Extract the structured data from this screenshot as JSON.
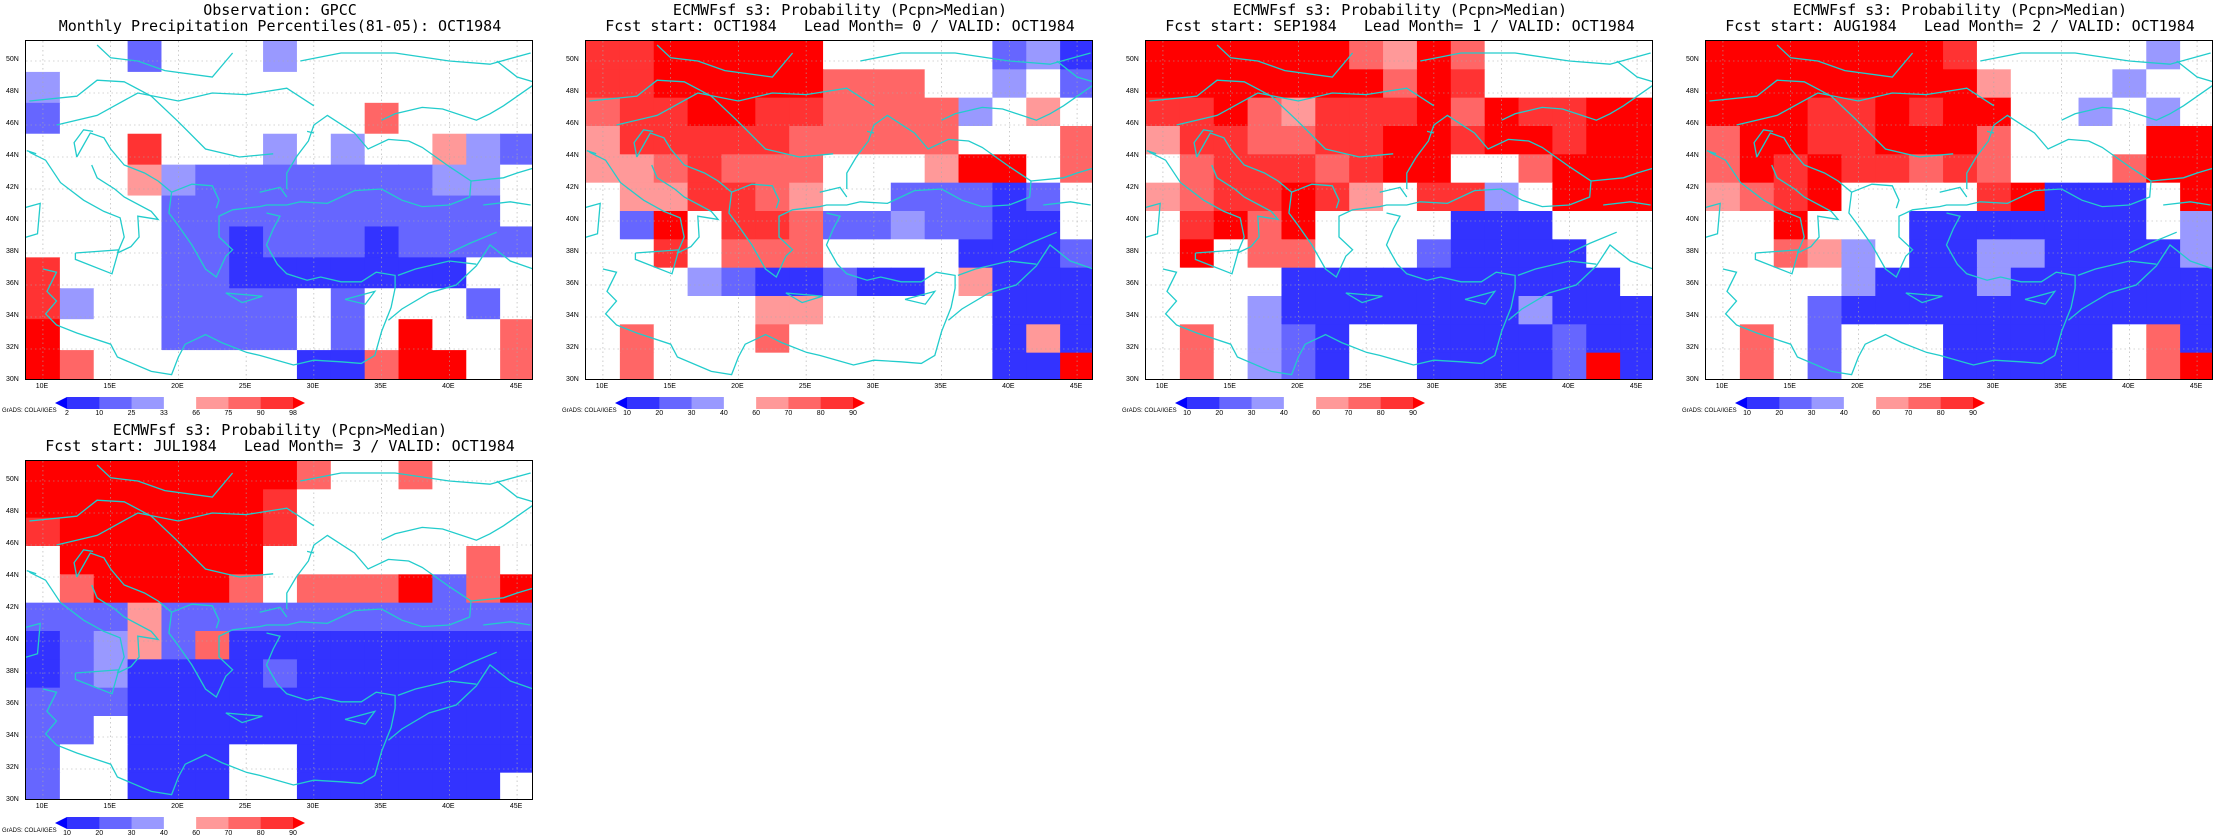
{
  "grads_label": "GrADS: COLA/IGES",
  "lat_labels": [
    "50N",
    "48N",
    "46N",
    "44N",
    "42N",
    "40N",
    "38N",
    "36N",
    "34N",
    "32N",
    "30N"
  ],
  "lon_labels": [
    "10E",
    "15E",
    "20E",
    "25E",
    "30E",
    "35E",
    "40E",
    "45E"
  ],
  "palettes": {
    "obs": [
      "#0000ff",
      "#3333ff",
      "#6666ff",
      "#9999ff",
      "#ffffff",
      "#ff9999",
      "#ff6666",
      "#ff3333",
      "#ff0000"
    ],
    "prob": [
      "#0000ff",
      "#3333ff",
      "#6666ff",
      "#9999ff",
      "#ffffff",
      "#ff9999",
      "#ff6666",
      "#ff3333",
      "#ff0000"
    ]
  },
  "colorbars": {
    "obs": [
      "2",
      "10",
      "25",
      "33",
      "66",
      "75",
      "90",
      "98"
    ],
    "prob": [
      "10",
      "20",
      "30",
      "40",
      "60",
      "70",
      "80",
      "90"
    ]
  },
  "coast_color": "#22cccc",
  "chart_data": [
    {
      "type": "heatmap",
      "title": "Observation: GPCC",
      "subtitle": "Monthly Precipitation Percentiles(81-05): OCT1984",
      "palette": "obs",
      "x": [
        "10E",
        "15E",
        "20E",
        "25E",
        "30E",
        "35E",
        "40E",
        "45E"
      ],
      "xlim": [
        8.75,
        46.25
      ],
      "ylim": [
        30,
        51.25
      ],
      "grid": "2.5 degree",
      "values": [
        [
          4,
          4,
          4,
          2,
          4,
          4,
          4,
          3,
          4,
          4,
          4,
          4,
          4,
          4,
          4
        ],
        [
          3,
          4,
          4,
          4,
          4,
          4,
          4,
          4,
          4,
          4,
          4,
          4,
          4,
          4,
          4
        ],
        [
          2,
          4,
          4,
          4,
          4,
          4,
          4,
          4,
          4,
          4,
          6,
          4,
          4,
          4,
          4
        ],
        [
          4,
          4,
          4,
          7,
          4,
          4,
          4,
          3,
          4,
          3,
          4,
          4,
          5,
          3,
          2
        ],
        [
          4,
          4,
          4,
          5,
          3,
          2,
          2,
          2,
          2,
          2,
          2,
          2,
          3,
          3,
          4
        ],
        [
          4,
          4,
          4,
          4,
          2,
          2,
          2,
          2,
          2,
          2,
          2,
          2,
          2,
          2,
          4
        ],
        [
          4,
          4,
          4,
          4,
          2,
          2,
          1,
          2,
          2,
          2,
          1,
          2,
          2,
          2,
          2
        ],
        [
          7,
          4,
          4,
          4,
          2,
          2,
          1,
          1,
          1,
          1,
          1,
          1,
          1,
          4,
          4
        ],
        [
          7,
          3,
          4,
          4,
          2,
          2,
          2,
          2,
          4,
          2,
          4,
          4,
          4,
          2,
          4
        ],
        [
          8,
          4,
          4,
          4,
          2,
          2,
          2,
          2,
          4,
          2,
          4,
          8,
          4,
          4,
          6
        ],
        [
          8,
          6,
          4,
          4,
          4,
          4,
          4,
          4,
          1,
          1,
          6,
          8,
          8,
          4,
          6
        ]
      ]
    },
    {
      "type": "heatmap",
      "title": "ECMWFsf s3: Probability (Pcpn>Median)",
      "subtitle": "Fcst start: OCT1984   Lead Month= 0 / VALID: OCT1984",
      "palette": "prob",
      "x": [
        "10E",
        "15E",
        "20E",
        "25E",
        "30E",
        "35E",
        "40E",
        "45E"
      ],
      "xlim": [
        8.75,
        46.25
      ],
      "ylim": [
        30,
        51.25
      ],
      "values": [
        [
          7,
          7,
          8,
          8,
          8,
          8,
          8,
          4,
          4,
          4,
          4,
          4,
          2,
          3,
          1
        ],
        [
          7,
          7,
          8,
          8,
          8,
          8,
          8,
          6,
          6,
          6,
          4,
          4,
          3,
          4,
          2
        ],
        [
          6,
          7,
          7,
          8,
          8,
          7,
          7,
          6,
          6,
          6,
          6,
          3,
          4,
          5,
          4
        ],
        [
          5,
          7,
          7,
          7,
          7,
          7,
          6,
          6,
          6,
          6,
          6,
          4,
          4,
          4,
          6
        ],
        [
          5,
          5,
          6,
          7,
          6,
          6,
          6,
          4,
          4,
          4,
          5,
          8,
          8,
          4,
          6
        ],
        [
          4,
          5,
          5,
          7,
          7,
          6,
          5,
          4,
          4,
          2,
          2,
          2,
          1,
          2,
          4
        ],
        [
          4,
          2,
          8,
          4,
          7,
          7,
          6,
          2,
          2,
          3,
          2,
          2,
          1,
          1,
          4
        ],
        [
          4,
          4,
          7,
          4,
          6,
          6,
          6,
          4,
          4,
          4,
          4,
          1,
          1,
          1,
          2
        ],
        [
          4,
          4,
          4,
          3,
          2,
          1,
          1,
          2,
          1,
          1,
          4,
          5,
          1,
          1,
          1
        ],
        [
          4,
          4,
          4,
          4,
          4,
          5,
          5,
          4,
          4,
          4,
          4,
          4,
          1,
          1,
          1
        ],
        [
          4,
          6,
          4,
          4,
          4,
          6,
          4,
          4,
          4,
          4,
          4,
          4,
          1,
          5,
          1
        ],
        [
          4,
          6,
          4,
          4,
          4,
          4,
          4,
          4,
          4,
          4,
          4,
          4,
          1,
          1,
          8
        ]
      ]
    },
    {
      "type": "heatmap",
      "title": "ECMWFsf s3: Probability (Pcpn>Median)",
      "subtitle": "Fcst start: SEP1984   Lead Month= 1 / VALID: OCT1984",
      "palette": "prob",
      "x": [
        "10E",
        "15E",
        "20E",
        "25E",
        "30E",
        "35E",
        "40E",
        "45E"
      ],
      "xlim": [
        8.75,
        46.25
      ],
      "ylim": [
        30,
        51.25
      ],
      "values": [
        [
          8,
          8,
          8,
          8,
          8,
          8,
          6,
          5,
          8,
          6,
          4,
          4,
          4,
          4,
          4
        ],
        [
          8,
          8,
          8,
          8,
          8,
          8,
          8,
          6,
          8,
          7,
          4,
          4,
          4,
          4,
          4
        ],
        [
          7,
          7,
          8,
          6,
          5,
          7,
          7,
          7,
          8,
          6,
          8,
          7,
          7,
          8,
          8
        ],
        [
          5,
          7,
          7,
          6,
          6,
          7,
          7,
          8,
          8,
          7,
          8,
          8,
          7,
          8,
          8
        ],
        [
          4,
          6,
          7,
          7,
          7,
          6,
          7,
          8,
          8,
          4,
          4,
          6,
          8,
          8,
          8
        ],
        [
          5,
          6,
          7,
          7,
          8,
          7,
          5,
          4,
          7,
          7,
          3,
          4,
          8,
          8,
          8
        ],
        [
          4,
          7,
          8,
          6,
          8,
          4,
          4,
          4,
          4,
          1,
          1,
          1,
          4,
          4,
          4
        ],
        [
          4,
          8,
          4,
          6,
          6,
          4,
          4,
          4,
          2,
          1,
          1,
          1,
          1,
          4,
          4
        ],
        [
          4,
          4,
          4,
          4,
          1,
          1,
          1,
          1,
          1,
          1,
          1,
          1,
          1,
          1,
          4
        ],
        [
          4,
          4,
          4,
          3,
          1,
          1,
          1,
          1,
          1,
          1,
          1,
          3,
          1,
          1,
          1
        ],
        [
          4,
          6,
          4,
          3,
          2,
          1,
          4,
          4,
          1,
          1,
          1,
          1,
          2,
          1,
          1
        ],
        [
          4,
          6,
          4,
          3,
          2,
          1,
          4,
          4,
          1,
          1,
          1,
          1,
          2,
          8,
          1
        ]
      ]
    },
    {
      "type": "heatmap",
      "title": "ECMWFsf s3: Probability (Pcpn>Median)",
      "subtitle": "Fcst start: AUG1984   Lead Month= 2 / VALID: OCT1984",
      "palette": "prob",
      "x": [
        "10E",
        "15E",
        "20E",
        "25E",
        "30E",
        "35E",
        "40E",
        "45E"
      ],
      "xlim": [
        8.75,
        46.25
      ],
      "ylim": [
        30,
        51.25
      ],
      "values": [
        [
          8,
          8,
          8,
          8,
          8,
          8,
          8,
          7,
          4,
          4,
          4,
          4,
          4,
          3,
          4
        ],
        [
          8,
          8,
          8,
          8,
          8,
          8,
          8,
          8,
          5,
          4,
          4,
          4,
          3,
          4,
          4
        ],
        [
          8,
          8,
          8,
          7,
          7,
          8,
          7,
          8,
          8,
          4,
          4,
          3,
          4,
          3,
          4
        ],
        [
          6,
          8,
          8,
          7,
          7,
          8,
          8,
          8,
          6,
          4,
          4,
          4,
          4,
          8,
          8
        ],
        [
          6,
          8,
          7,
          8,
          7,
          7,
          6,
          7,
          6,
          4,
          4,
          4,
          6,
          8,
          8
        ],
        [
          5,
          6,
          7,
          8,
          4,
          4,
          4,
          4,
          7,
          8,
          1,
          1,
          1,
          4,
          8
        ],
        [
          4,
          4,
          8,
          4,
          4,
          4,
          1,
          1,
          1,
          1,
          1,
          1,
          1,
          4,
          3
        ],
        [
          4,
          4,
          6,
          5,
          3,
          4,
          1,
          1,
          3,
          3,
          1,
          1,
          1,
          1,
          3
        ],
        [
          4,
          4,
          4,
          4,
          3,
          1,
          1,
          1,
          3,
          1,
          1,
          1,
          1,
          1,
          1
        ],
        [
          4,
          4,
          4,
          2,
          1,
          1,
          1,
          1,
          1,
          1,
          1,
          1,
          1,
          1,
          1
        ],
        [
          4,
          6,
          4,
          2,
          4,
          4,
          4,
          1,
          1,
          1,
          1,
          1,
          4,
          6,
          1
        ],
        [
          4,
          6,
          4,
          2,
          4,
          4,
          4,
          1,
          1,
          1,
          1,
          1,
          4,
          6,
          8
        ]
      ]
    },
    {
      "type": "heatmap",
      "title": "ECMWFsf s3: Probability (Pcpn>Median)",
      "subtitle": "Fcst start: JUL1984   Lead Month= 3 / VALID: OCT1984",
      "palette": "prob",
      "x": [
        "10E",
        "15E",
        "20E",
        "25E",
        "30E",
        "35E",
        "40E",
        "45E"
      ],
      "xlim": [
        8.75,
        46.25
      ],
      "ylim": [
        30,
        51.25
      ],
      "values": [
        [
          8,
          8,
          8,
          8,
          8,
          8,
          8,
          8,
          6,
          4,
          4,
          6,
          4,
          4,
          4
        ],
        [
          8,
          8,
          8,
          8,
          8,
          8,
          8,
          7,
          4,
          4,
          4,
          4,
          4,
          4,
          4
        ],
        [
          7,
          8,
          8,
          8,
          8,
          8,
          8,
          7,
          4,
          4,
          4,
          4,
          4,
          4,
          4
        ],
        [
          4,
          8,
          8,
          8,
          8,
          8,
          8,
          4,
          4,
          4,
          4,
          4,
          4,
          6,
          4
        ],
        [
          4,
          6,
          8,
          8,
          8,
          8,
          6,
          4,
          6,
          6,
          6,
          8,
          2,
          6,
          8
        ],
        [
          2,
          2,
          2,
          5,
          2,
          2,
          2,
          2,
          2,
          2,
          2,
          2,
          2,
          2,
          2
        ],
        [
          1,
          2,
          3,
          5,
          2,
          6,
          1,
          1,
          1,
          1,
          1,
          1,
          1,
          1,
          1
        ],
        [
          1,
          2,
          3,
          1,
          1,
          1,
          1,
          2,
          1,
          1,
          1,
          1,
          1,
          1,
          1
        ],
        [
          2,
          2,
          2,
          1,
          1,
          1,
          1,
          1,
          1,
          1,
          1,
          1,
          1,
          1,
          1
        ],
        [
          2,
          2,
          4,
          1,
          1,
          1,
          1,
          1,
          1,
          1,
          1,
          1,
          1,
          1,
          1
        ],
        [
          2,
          4,
          4,
          1,
          1,
          1,
          4,
          4,
          1,
          1,
          1,
          1,
          1,
          1,
          1
        ],
        [
          2,
          4,
          4,
          1,
          1,
          1,
          4,
          4,
          1,
          1,
          1,
          1,
          1,
          1,
          4
        ]
      ]
    }
  ]
}
